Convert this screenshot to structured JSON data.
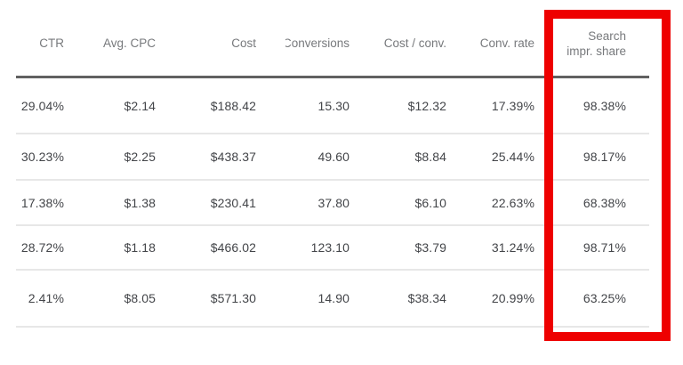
{
  "table": {
    "columns": [
      {
        "label": "CTR"
      },
      {
        "label": "Avg. CPC"
      },
      {
        "label": "Cost"
      },
      {
        "label": "Conversions"
      },
      {
        "label": "Cost / conv."
      },
      {
        "label": "Conv. rate"
      },
      {
        "label_line1": "Search",
        "label_line2": "impr. share"
      }
    ],
    "rows": [
      {
        "cells": [
          "29.04%",
          "$2.14",
          "$188.42",
          "15.30",
          "$12.32",
          "17.39%",
          "98.38%"
        ]
      },
      {
        "cells": [
          "30.23%",
          "$2.25",
          "$438.37",
          "49.60",
          "$8.84",
          "25.44%",
          "98.17%"
        ]
      },
      {
        "cells": [
          "17.38%",
          "$1.38",
          "$230.41",
          "37.80",
          "$6.10",
          "22.63%",
          "68.38%"
        ]
      },
      {
        "cells": [
          "28.72%",
          "$1.18",
          "$466.02",
          "123.10",
          "$3.79",
          "31.24%",
          "98.71%"
        ]
      },
      {
        "cells": [
          "2.41%",
          "$8.05",
          "$571.30",
          "14.90",
          "$38.34",
          "20.99%",
          "63.25%"
        ]
      }
    ]
  },
  "annotation": {
    "type": "highlight-box",
    "color": "#ee0000",
    "highlighted_column": "Search impr. share"
  }
}
